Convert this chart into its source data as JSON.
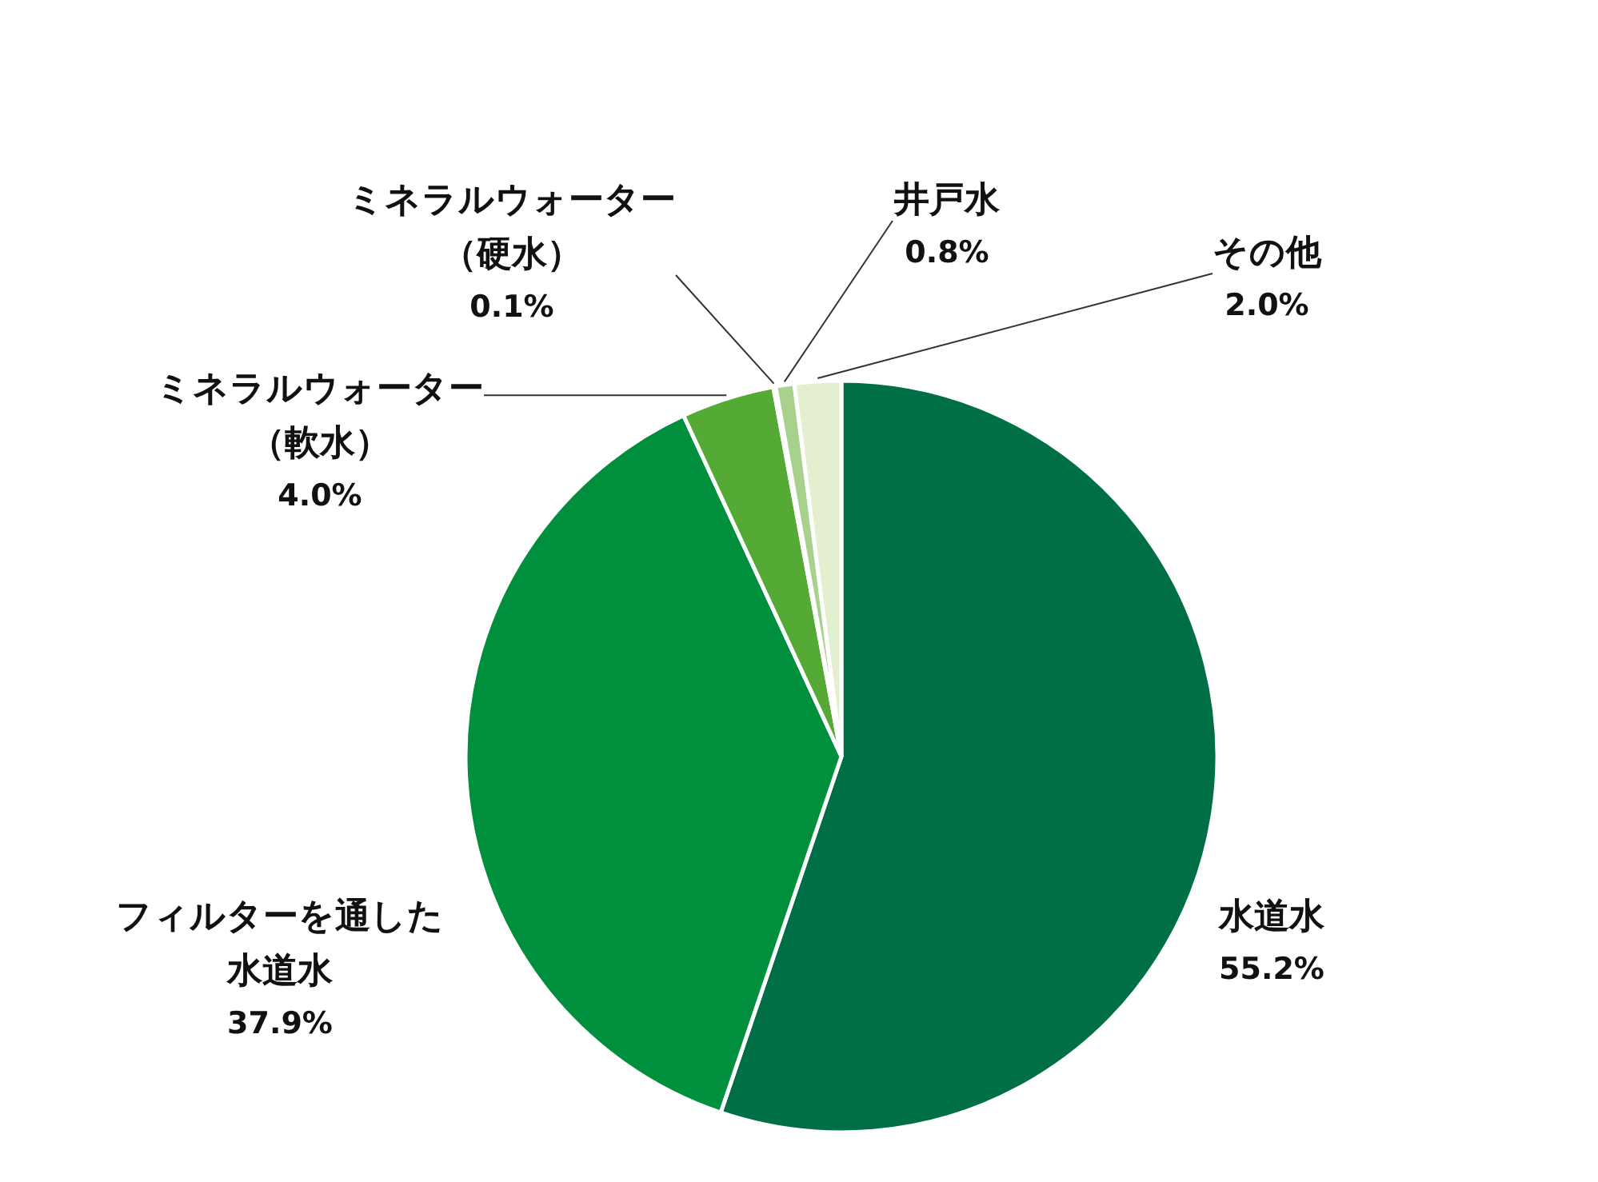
{
  "chart_data": {
    "type": "pie",
    "categories": [
      "水道水",
      "フィルターを通した水道水",
      "ミネラルウォーター（軟水）",
      "ミネラルウォーター（硬水）",
      "井戸水",
      "その他"
    ],
    "values": [
      55.2,
      37.9,
      4.0,
      0.1,
      0.8,
      2.0
    ],
    "colors": [
      "#006f45",
      "#008f3d",
      "#55a935",
      "#8cc63f",
      "#a9d18e",
      "#e4efd0"
    ],
    "value_labels": [
      "55.2%",
      "37.9%",
      "4.0%",
      "0.1%",
      "0.8%",
      "2.0%"
    ]
  }
}
